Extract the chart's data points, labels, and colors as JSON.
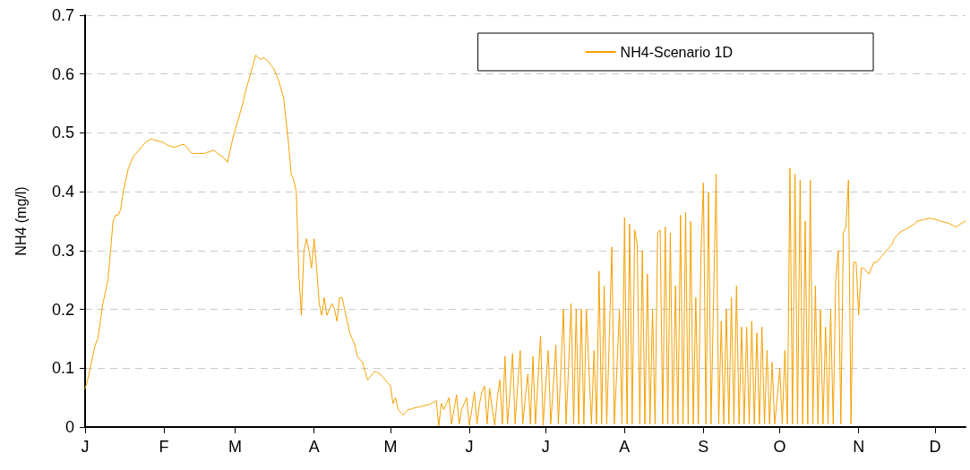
{
  "chart_data": {
    "type": "line",
    "ylabel": "NH4 (mg/l)",
    "categories": [
      "J",
      null,
      null,
      null,
      null,
      null,
      null,
      null,
      null,
      null,
      null,
      null,
      null,
      null,
      null,
      null,
      null,
      null,
      null,
      null,
      null,
      null,
      null,
      null,
      null,
      null,
      null,
      null,
      null,
      null,
      null,
      "F",
      null,
      null,
      null,
      null,
      null,
      null,
      null,
      null,
      null,
      null,
      null,
      null,
      null,
      null,
      null,
      null,
      null,
      null,
      null,
      null,
      null,
      null,
      null,
      null,
      null,
      null,
      null,
      "M",
      null,
      null,
      null,
      null,
      null,
      null,
      null,
      null,
      null,
      null,
      null,
      null,
      null,
      null,
      null,
      null,
      null,
      null,
      null,
      null,
      null,
      null,
      null,
      null,
      null,
      null,
      null,
      null,
      null,
      null,
      "A",
      null,
      null,
      null,
      null,
      null,
      null,
      null,
      null,
      null,
      null,
      null,
      null,
      null,
      null,
      null,
      null,
      null,
      null,
      null,
      null,
      null,
      null,
      null,
      null,
      null,
      null,
      null,
      null,
      null,
      "M",
      null,
      null,
      null,
      null,
      null,
      null,
      null,
      null,
      null,
      null,
      null,
      null,
      null,
      null,
      null,
      null,
      null,
      null,
      null,
      null,
      null,
      null,
      null,
      null,
      null,
      null,
      null,
      null,
      null,
      null,
      "J",
      null,
      null,
      null,
      null,
      null,
      null,
      null,
      null,
      null,
      null,
      null,
      null,
      null,
      null,
      null,
      null,
      null,
      null,
      null,
      null,
      null,
      null,
      null,
      null,
      null,
      null,
      null,
      null,
      null,
      "J",
      null,
      null,
      null,
      null,
      null,
      null,
      null,
      null,
      null,
      null,
      null,
      null,
      null,
      null,
      null,
      null,
      null,
      null,
      null,
      null,
      null,
      null,
      null,
      null,
      null,
      null,
      null,
      null,
      null,
      null,
      "A",
      null,
      null,
      null,
      null,
      null,
      null,
      null,
      null,
      null,
      null,
      null,
      null,
      null,
      null,
      null,
      null,
      null,
      null,
      null,
      null,
      null,
      null,
      null,
      null,
      null,
      null,
      null,
      null,
      null,
      null,
      "S",
      null,
      null,
      null,
      null,
      null,
      null,
      null,
      null,
      null,
      null,
      null,
      null,
      null,
      null,
      null,
      null,
      null,
      null,
      null,
      null,
      null,
      null,
      null,
      null,
      null,
      null,
      null,
      null,
      null,
      "O",
      null,
      null,
      null,
      null,
      null,
      null,
      null,
      null,
      null,
      null,
      null,
      null,
      null,
      null,
      null,
      null,
      null,
      null,
      null,
      null,
      null,
      null,
      null,
      null,
      null,
      null,
      null,
      null,
      null,
      null,
      "N",
      null,
      null,
      null,
      null,
      null,
      null,
      null,
      null,
      null,
      null,
      null,
      null,
      null,
      null,
      null,
      null,
      null,
      null,
      null,
      null,
      null,
      null,
      null,
      null,
      null,
      null,
      null,
      null,
      null,
      "D",
      null,
      null,
      null,
      null,
      null,
      null,
      null,
      null,
      null,
      null,
      null,
      null
    ],
    "ylim": [
      0,
      0.7
    ],
    "yticks": [
      0,
      0.1,
      0.2,
      0.3,
      0.4,
      0.5,
      0.6,
      0.7
    ],
    "grid": "y",
    "legend": "top right",
    "marker": "none",
    "line_style": "solid",
    "series": [
      {
        "name": "NH4-Scenario 1D",
        "color": "#f5a000",
        "values": [
          0.065,
          0.08,
          0.1,
          0.12,
          0.14,
          0.15,
          0.18,
          0.21,
          0.23,
          0.25,
          0.3,
          0.35,
          0.36,
          0.36,
          0.37,
          0.4,
          0.42,
          0.44,
          0.45,
          0.46,
          0.465,
          0.47,
          0.475,
          0.48,
          0.485,
          0.487,
          0.49,
          0.488,
          0.487,
          0.486,
          0.485,
          0.483,
          0.48,
          0.478,
          0.477,
          0.475,
          0.477,
          0.478,
          0.48,
          0.48,
          0.475,
          0.47,
          0.465,
          0.465,
          0.465,
          0.465,
          0.465,
          0.465,
          0.467,
          0.468,
          0.47,
          0.47,
          0.465,
          0.462,
          0.46,
          0.455,
          0.45,
          0.47,
          0.49,
          0.505,
          0.52,
          0.535,
          0.55,
          0.57,
          0.585,
          0.6,
          0.615,
          0.632,
          0.628,
          0.625,
          0.628,
          0.625,
          0.622,
          0.615,
          0.61,
          0.6,
          0.59,
          0.575,
          0.56,
          0.52,
          0.48,
          0.43,
          0.42,
          0.4,
          0.26,
          0.19,
          0.3,
          0.32,
          0.3,
          0.27,
          0.32,
          0.27,
          0.21,
          0.19,
          0.22,
          0.19,
          0.2,
          0.21,
          0.2,
          0.18,
          0.22,
          0.22,
          0.2,
          0.18,
          0.16,
          0.15,
          0.14,
          0.12,
          0.115,
          0.11,
          0.095,
          0.08,
          0.085,
          0.09,
          0.095,
          0.092,
          0.09,
          0.085,
          0.08,
          0.075,
          0.07,
          0.04,
          0.05,
          0.03,
          0.025,
          0.02,
          0.025,
          0.03,
          0.03,
          0.032,
          0.033,
          0.034,
          0.035,
          0.036,
          0.037,
          0.038,
          0.04,
          0.042,
          0.045,
          0.002,
          0.04,
          0.03,
          0.04,
          0.05,
          0.005,
          0.03,
          0.055,
          0.005,
          0.03,
          0.04,
          0.05,
          0.003,
          0.03,
          0.06,
          0.005,
          0.04,
          0.06,
          0.07,
          0.005,
          0.065,
          0.03,
          0.003,
          0.05,
          0.08,
          0.005,
          0.12,
          0.005,
          0.06,
          0.125,
          0.005,
          0.07,
          0.13,
          0.005,
          0.05,
          0.09,
          0.005,
          0.12,
          0.005,
          0.08,
          0.155,
          0.003,
          0.07,
          0.13,
          0.005,
          0.07,
          0.14,
          0.005,
          0.1,
          0.2,
          0.005,
          0.1,
          0.21,
          0.005,
          0.2,
          0.005,
          0.2,
          0.005,
          0.2,
          0.1,
          0.005,
          0.13,
          0.005,
          0.265,
          0.005,
          0.24,
          0.005,
          0.15,
          0.306,
          0.005,
          0.1,
          0.2,
          0.005,
          0.356,
          0.005,
          0.345,
          0.005,
          0.335,
          0.31,
          0.005,
          0.3,
          0.005,
          0.26,
          0.005,
          0.2,
          0.005,
          0.33,
          0.335,
          0.005,
          0.34,
          0.005,
          0.33,
          0.005,
          0.24,
          0.005,
          0.36,
          0.005,
          0.365,
          0.005,
          0.35,
          0.005,
          0.22,
          0.005,
          0.29,
          0.415,
          0.005,
          0.4,
          0.005,
          0.22,
          0.43,
          0.005,
          0.18,
          0.005,
          0.2,
          0.005,
          0.22,
          0.005,
          0.24,
          0.005,
          0.17,
          0.005,
          0.17,
          0.005,
          0.18,
          0.005,
          0.16,
          0.005,
          0.17,
          0.005,
          0.13,
          0.005,
          0.11,
          0.005,
          0.05,
          0.1,
          0.005,
          0.13,
          0.005,
          0.44,
          0.005,
          0.43,
          0.005,
          0.42,
          0.005,
          0.35,
          0.005,
          0.42,
          0.005,
          0.24,
          0.005,
          0.2,
          0.005,
          0.17,
          0.005,
          0.2,
          0.005,
          0.25,
          0.3,
          0.005,
          0.33,
          0.34,
          0.42,
          0.005,
          0.28,
          0.28,
          0.19,
          0.27,
          0.27,
          0.265,
          0.26,
          0.27,
          0.28,
          0.28,
          0.285,
          0.29,
          0.295,
          0.3,
          0.305,
          0.31,
          0.32,
          0.325,
          0.33,
          0.333,
          0.335,
          0.338,
          0.34,
          0.343,
          0.345,
          0.35,
          0.351,
          0.352,
          0.353,
          0.354,
          0.355,
          0.354,
          0.353,
          0.352,
          0.35,
          0.349,
          0.348,
          0.347,
          0.345,
          0.343,
          0.34,
          0.342,
          0.345,
          0.348,
          0.35
        ]
      }
    ]
  }
}
